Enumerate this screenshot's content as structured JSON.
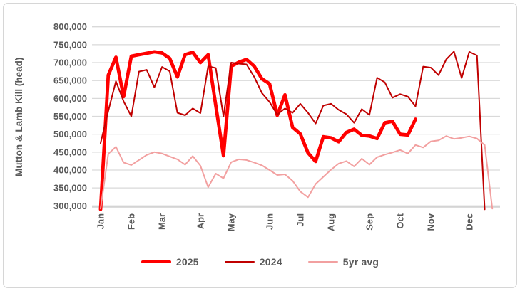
{
  "chart_data": {
    "type": "line",
    "ylabel": "Mutton & Lamb Kill  (head)",
    "y_ticks": [
      800000,
      750000,
      700000,
      650000,
      600000,
      550000,
      500000,
      450000,
      400000,
      350000,
      300000
    ],
    "ylim": [
      300000,
      800000
    ],
    "x_unit": "week",
    "month_labels": [
      "Jan",
      "Feb",
      "Mar",
      "Apr",
      "May",
      "Jun",
      "Jul",
      "Aug",
      "Sep",
      "Oct",
      "Nov",
      "Dec"
    ],
    "month_tick_week_index": [
      0,
      4,
      8,
      13,
      17,
      22,
      26,
      30,
      35,
      39,
      43,
      48
    ],
    "weeks_per_year": 53,
    "grid": "horizontal",
    "legend_position": "bottom",
    "axis_text_color": "#595959",
    "gridline_color": "#d9d9d9",
    "axis_line_color": "#c6c6c6",
    "series": [
      {
        "name": "2025",
        "color": "#ff0000",
        "stroke_width": 4.8,
        "values": [
          290000,
          665000,
          715000,
          605000,
          718000,
          722000,
          726000,
          730000,
          727000,
          712000,
          660000,
          722000,
          729000,
          700000,
          722000,
          580000,
          440000,
          690000,
          701000,
          709000,
          690000,
          655000,
          641000,
          553000,
          610000,
          519000,
          501000,
          448000,
          424000,
          493000,
          490000,
          479000,
          505000,
          514000,
          497000,
          495000,
          488000,
          532000,
          536000,
          500000,
          498000,
          542000
        ]
      },
      {
        "name": "2024",
        "color": "#c00000",
        "stroke_width": 2,
        "values": [
          475000,
          565000,
          648000,
          592000,
          550000,
          675000,
          680000,
          631000,
          688000,
          676000,
          560000,
          553000,
          572000,
          559000,
          690000,
          685000,
          550000,
          700000,
          697000,
          695000,
          660000,
          615000,
          590000,
          555000,
          572000,
          560000,
          585000,
          560000,
          530000,
          580000,
          585000,
          568000,
          556000,
          532000,
          570000,
          554000,
          658000,
          645000,
          602000,
          612000,
          605000,
          578000,
          689000,
          686000,
          665000,
          709000,
          731000,
          657000,
          730000,
          720000,
          290000
        ]
      },
      {
        "name": "5yr avg",
        "color": "#f2a0a0",
        "stroke_width": 2,
        "values": [
          292000,
          445000,
          465000,
          421000,
          414000,
          428000,
          442000,
          450000,
          446000,
          438000,
          430000,
          415000,
          439000,
          412000,
          352000,
          390000,
          377000,
          422000,
          430000,
          428000,
          421000,
          413000,
          400000,
          386000,
          388000,
          370000,
          340000,
          324000,
          361000,
          381000,
          401000,
          418000,
          425000,
          410000,
          432000,
          415000,
          436000,
          443000,
          449000,
          456000,
          446000,
          470000,
          463000,
          480000,
          483000,
          495000,
          487000,
          490000,
          494000,
          488000,
          470000,
          292000
        ]
      }
    ]
  }
}
